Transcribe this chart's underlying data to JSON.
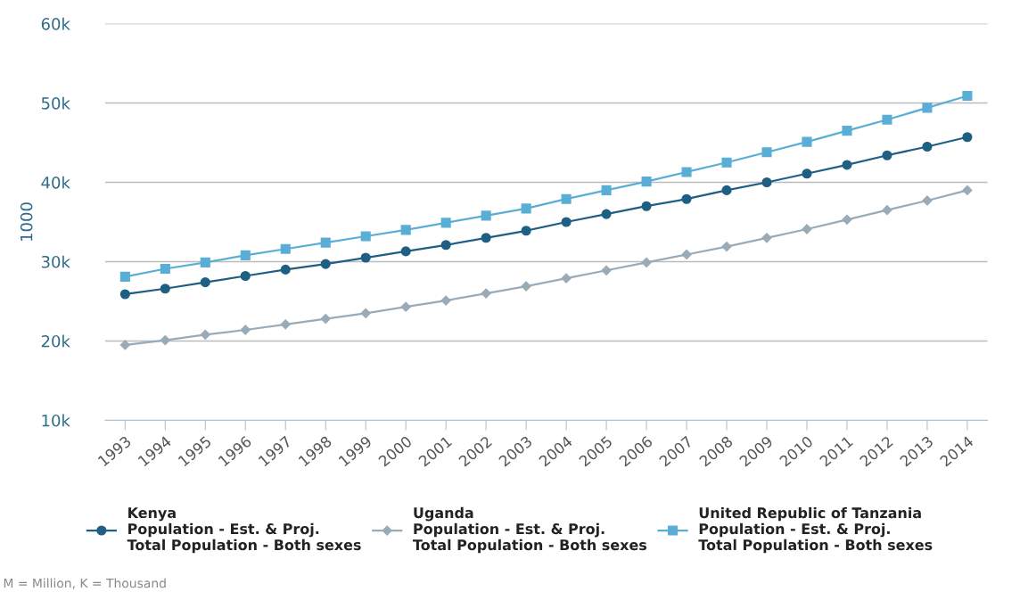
{
  "chart_data": {
    "type": "line",
    "ylabel": "1000",
    "categories": [
      "1993",
      "1994",
      "1995",
      "1996",
      "1997",
      "1998",
      "1999",
      "2000",
      "2001",
      "2002",
      "2003",
      "2004",
      "2005",
      "2006",
      "2007",
      "2008",
      "2009",
      "2010",
      "2011",
      "2012",
      "2013",
      "2014"
    ],
    "series": [
      {
        "name": "Kenya\nPopulation - Est. & Proj.\nTotal Population - Both sexes",
        "color": "#1f5f84",
        "marker": "circle",
        "values": [
          25900,
          26600,
          27400,
          28200,
          29000,
          29700,
          30500,
          31300,
          32100,
          33000,
          33900,
          35000,
          36000,
          37000,
          37900,
          39000,
          40000,
          41100,
          42200,
          43400,
          44500,
          45700
        ]
      },
      {
        "name": "Uganda\nPopulation - Est. & Proj.\nTotal Population - Both sexes",
        "color": "#9aabb8",
        "marker": "diamond",
        "values": [
          19500,
          20100,
          20800,
          21400,
          22100,
          22800,
          23500,
          24300,
          25100,
          26000,
          26900,
          27900,
          28900,
          29900,
          30900,
          31900,
          33000,
          34100,
          35300,
          36500,
          37700,
          39000
        ]
      },
      {
        "name": "United Republic of Tanzania\nPopulation - Est. & Proj.\nTotal Population - Both sexes",
        "color": "#5aaed6",
        "marker": "square",
        "values": [
          28100,
          29100,
          29900,
          30800,
          31600,
          32400,
          33200,
          34000,
          34900,
          35800,
          36700,
          37900,
          39000,
          40100,
          41300,
          42500,
          43800,
          45100,
          46500,
          47900,
          49400,
          50900
        ]
      }
    ],
    "ylim": [
      10000,
      60000
    ],
    "yticks": [
      {
        "value": 10000,
        "label": "10k"
      },
      {
        "value": 20000,
        "label": "20k"
      },
      {
        "value": 30000,
        "label": "30k"
      },
      {
        "value": 40000,
        "label": "40k"
      },
      {
        "value": 50000,
        "label": "50k"
      },
      {
        "value": 60000,
        "label": "60k"
      }
    ],
    "grid": "y",
    "legend": "bottom",
    "line_style": "solid",
    "annotations": [
      "M = Million, K = Thousand"
    ]
  }
}
